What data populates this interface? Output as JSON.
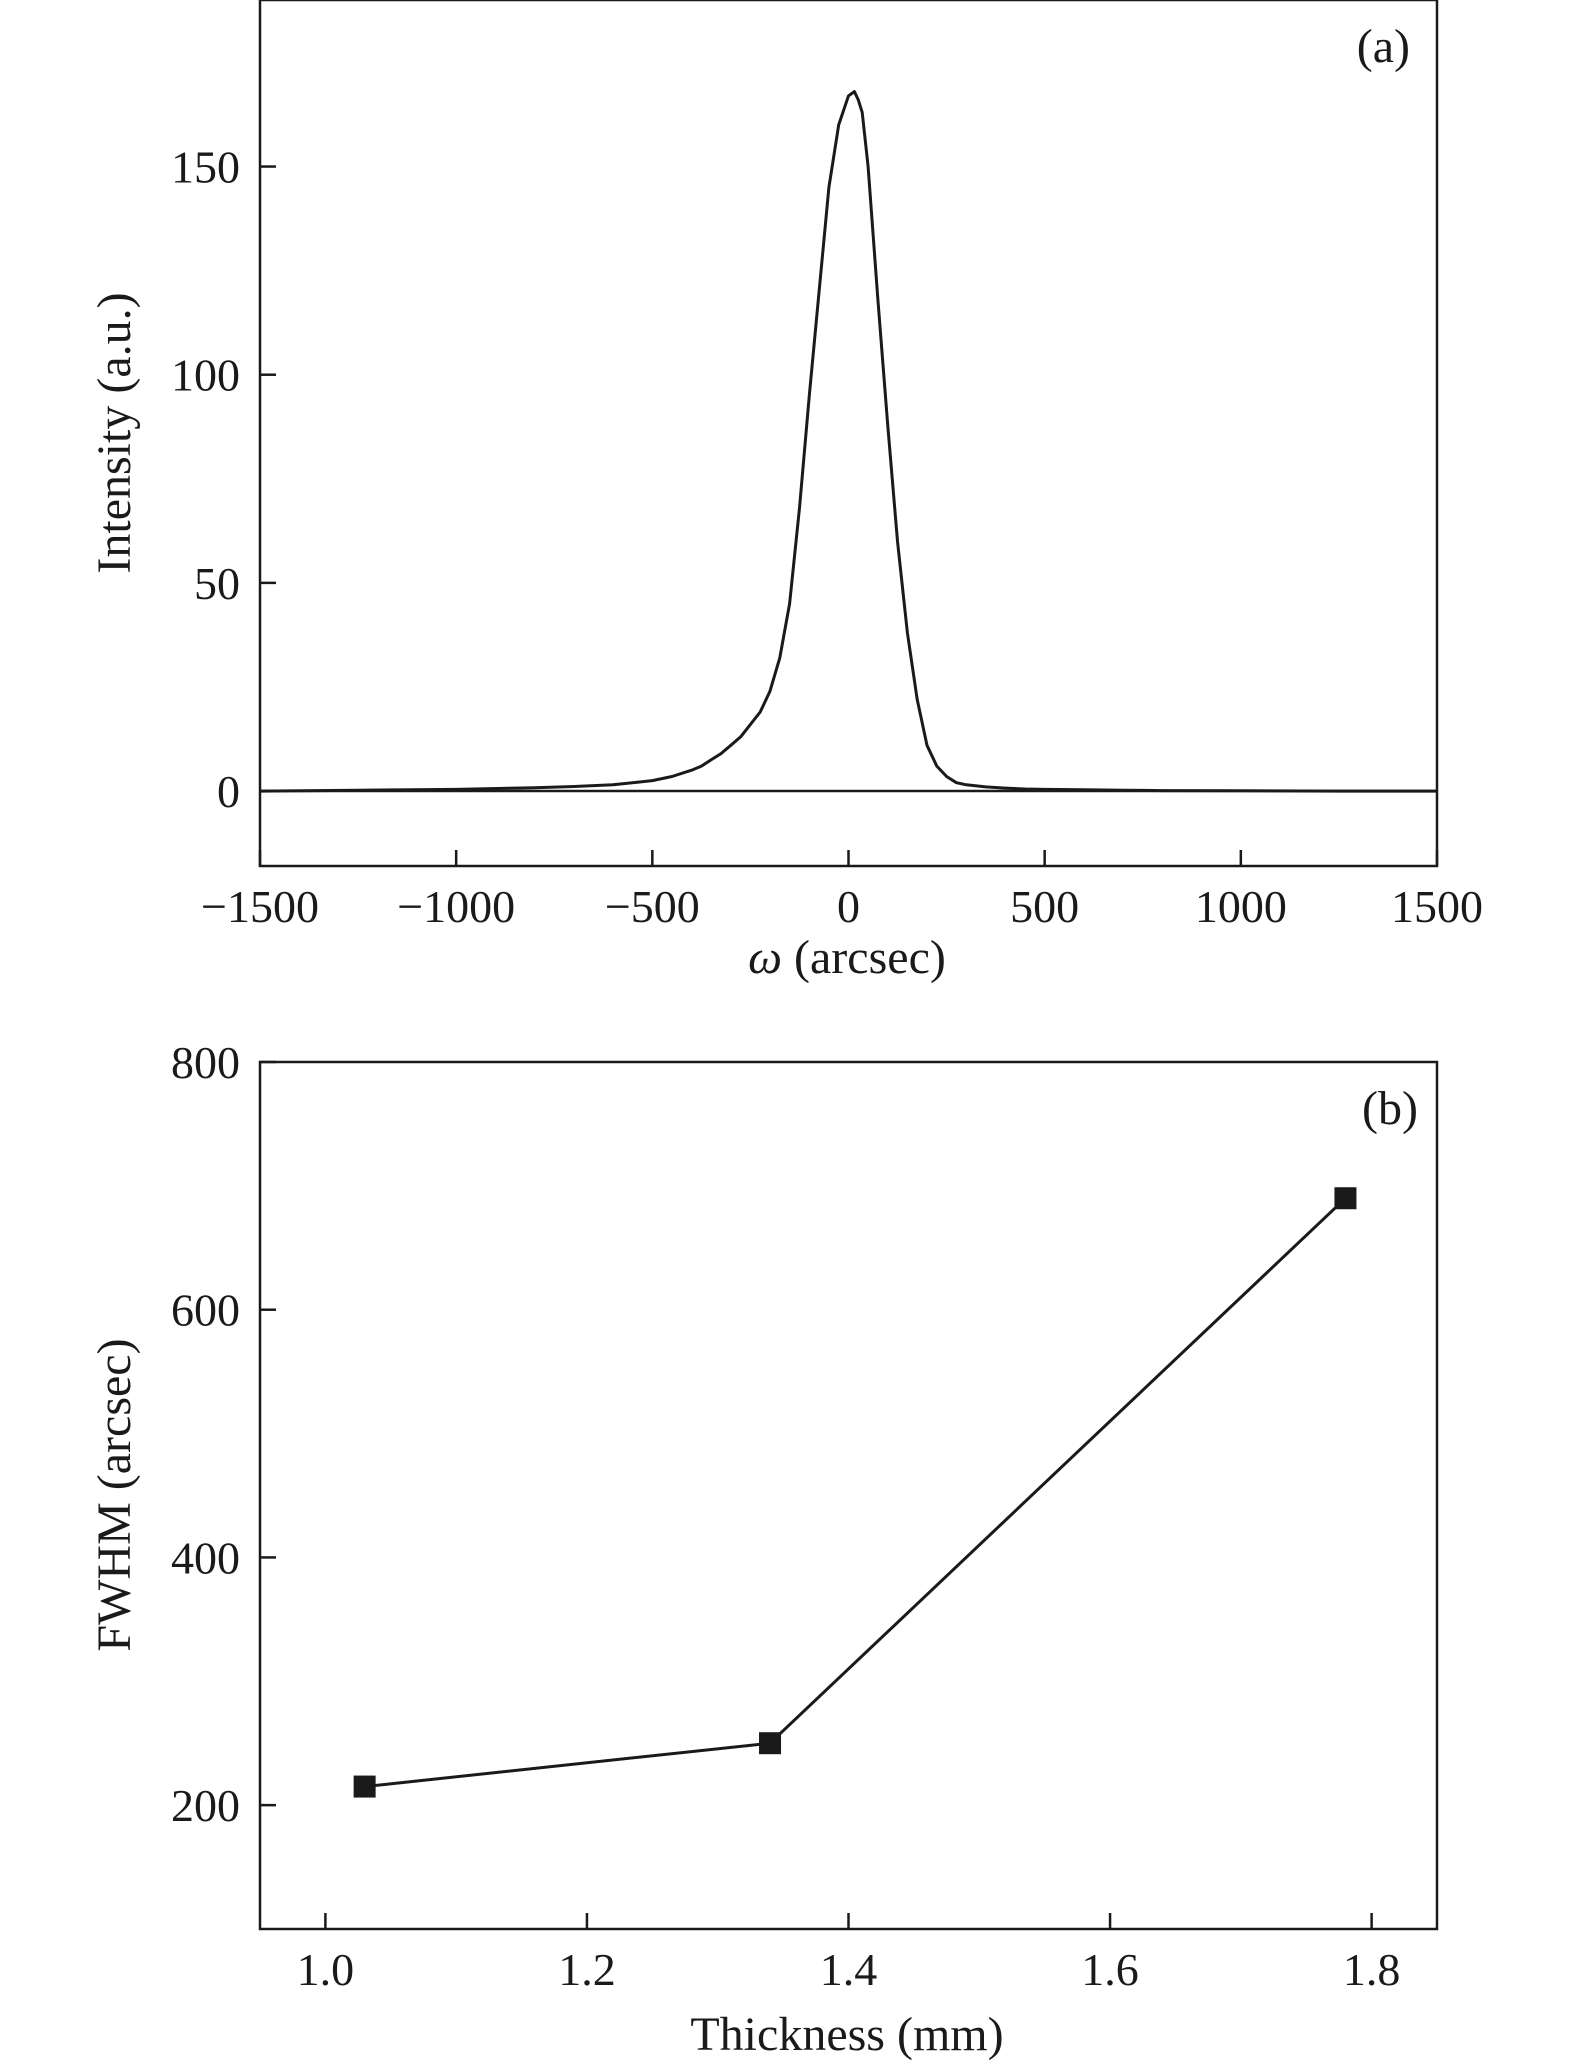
{
  "chart_data": [
    {
      "type": "line",
      "panel_label": "(a)",
      "xlabel_symbol": "ω",
      "xlabel_rest": " (arcsec)",
      "ylabel": "Intensity (a.u.)",
      "xlim": [
        -1500,
        1500
      ],
      "ylim": [
        -18,
        190
      ],
      "xticks": [
        -1500,
        -1000,
        -500,
        0,
        500,
        1000,
        1500
      ],
      "xtick_labels": [
        "−1500",
        "−1000",
        "−500",
        "0",
        "500",
        "1000",
        "1500"
      ],
      "yticks": [
        0,
        50,
        100,
        150
      ],
      "ytick_labels": [
        "0",
        "50",
        "100",
        "150"
      ],
      "grid": false,
      "line_color": "#1a1a1a",
      "series": [
        {
          "x": [
            -1500,
            -1250,
            -1000,
            -800,
            -700,
            -600,
            -500,
            -450,
            -400,
            -375,
            -350,
            -325,
            -300,
            -275,
            -250,
            -225,
            -200,
            -175,
            -150,
            -125,
            -100,
            -75,
            -50,
            -25,
            0,
            15,
            25,
            35,
            50,
            75,
            100,
            125,
            150,
            175,
            200,
            225,
            250,
            275,
            300,
            350,
            400,
            450,
            500,
            600,
            700,
            800,
            1000,
            1250,
            1500
          ],
          "y": [
            0,
            0.2,
            0.4,
            0.8,
            1.1,
            1.5,
            2.5,
            3.5,
            5,
            6,
            7.5,
            9,
            11,
            13,
            16,
            19,
            24,
            32,
            45,
            68,
            95,
            120,
            145,
            160,
            167,
            168,
            166,
            163,
            150,
            118,
            88,
            60,
            38,
            22,
            11,
            6,
            3.5,
            2,
            1.5,
            1,
            0.7,
            0.5,
            0.4,
            0.3,
            0.2,
            0.1,
            0.05,
            0,
            0
          ]
        }
      ]
    },
    {
      "type": "line",
      "panel_label": "(b)",
      "xlabel": "Thickness (mm)",
      "ylabel": "FWHM (arcsec)",
      "xlim": [
        0.95,
        1.85
      ],
      "ylim": [
        100,
        800
      ],
      "xticks": [
        1.0,
        1.2,
        1.4,
        1.6,
        1.8
      ],
      "xtick_labels": [
        "1.0",
        "1.2",
        "1.4",
        "1.6",
        "1.8"
      ],
      "yticks": [
        200,
        400,
        600,
        800
      ],
      "ytick_labels": [
        "200",
        "400",
        "600",
        "800"
      ],
      "grid": false,
      "marker": "square",
      "line_color": "#1a1a1a",
      "series": [
        {
          "x": [
            1.03,
            1.34,
            1.78
          ],
          "y": [
            215,
            250,
            690
          ]
        }
      ]
    }
  ]
}
